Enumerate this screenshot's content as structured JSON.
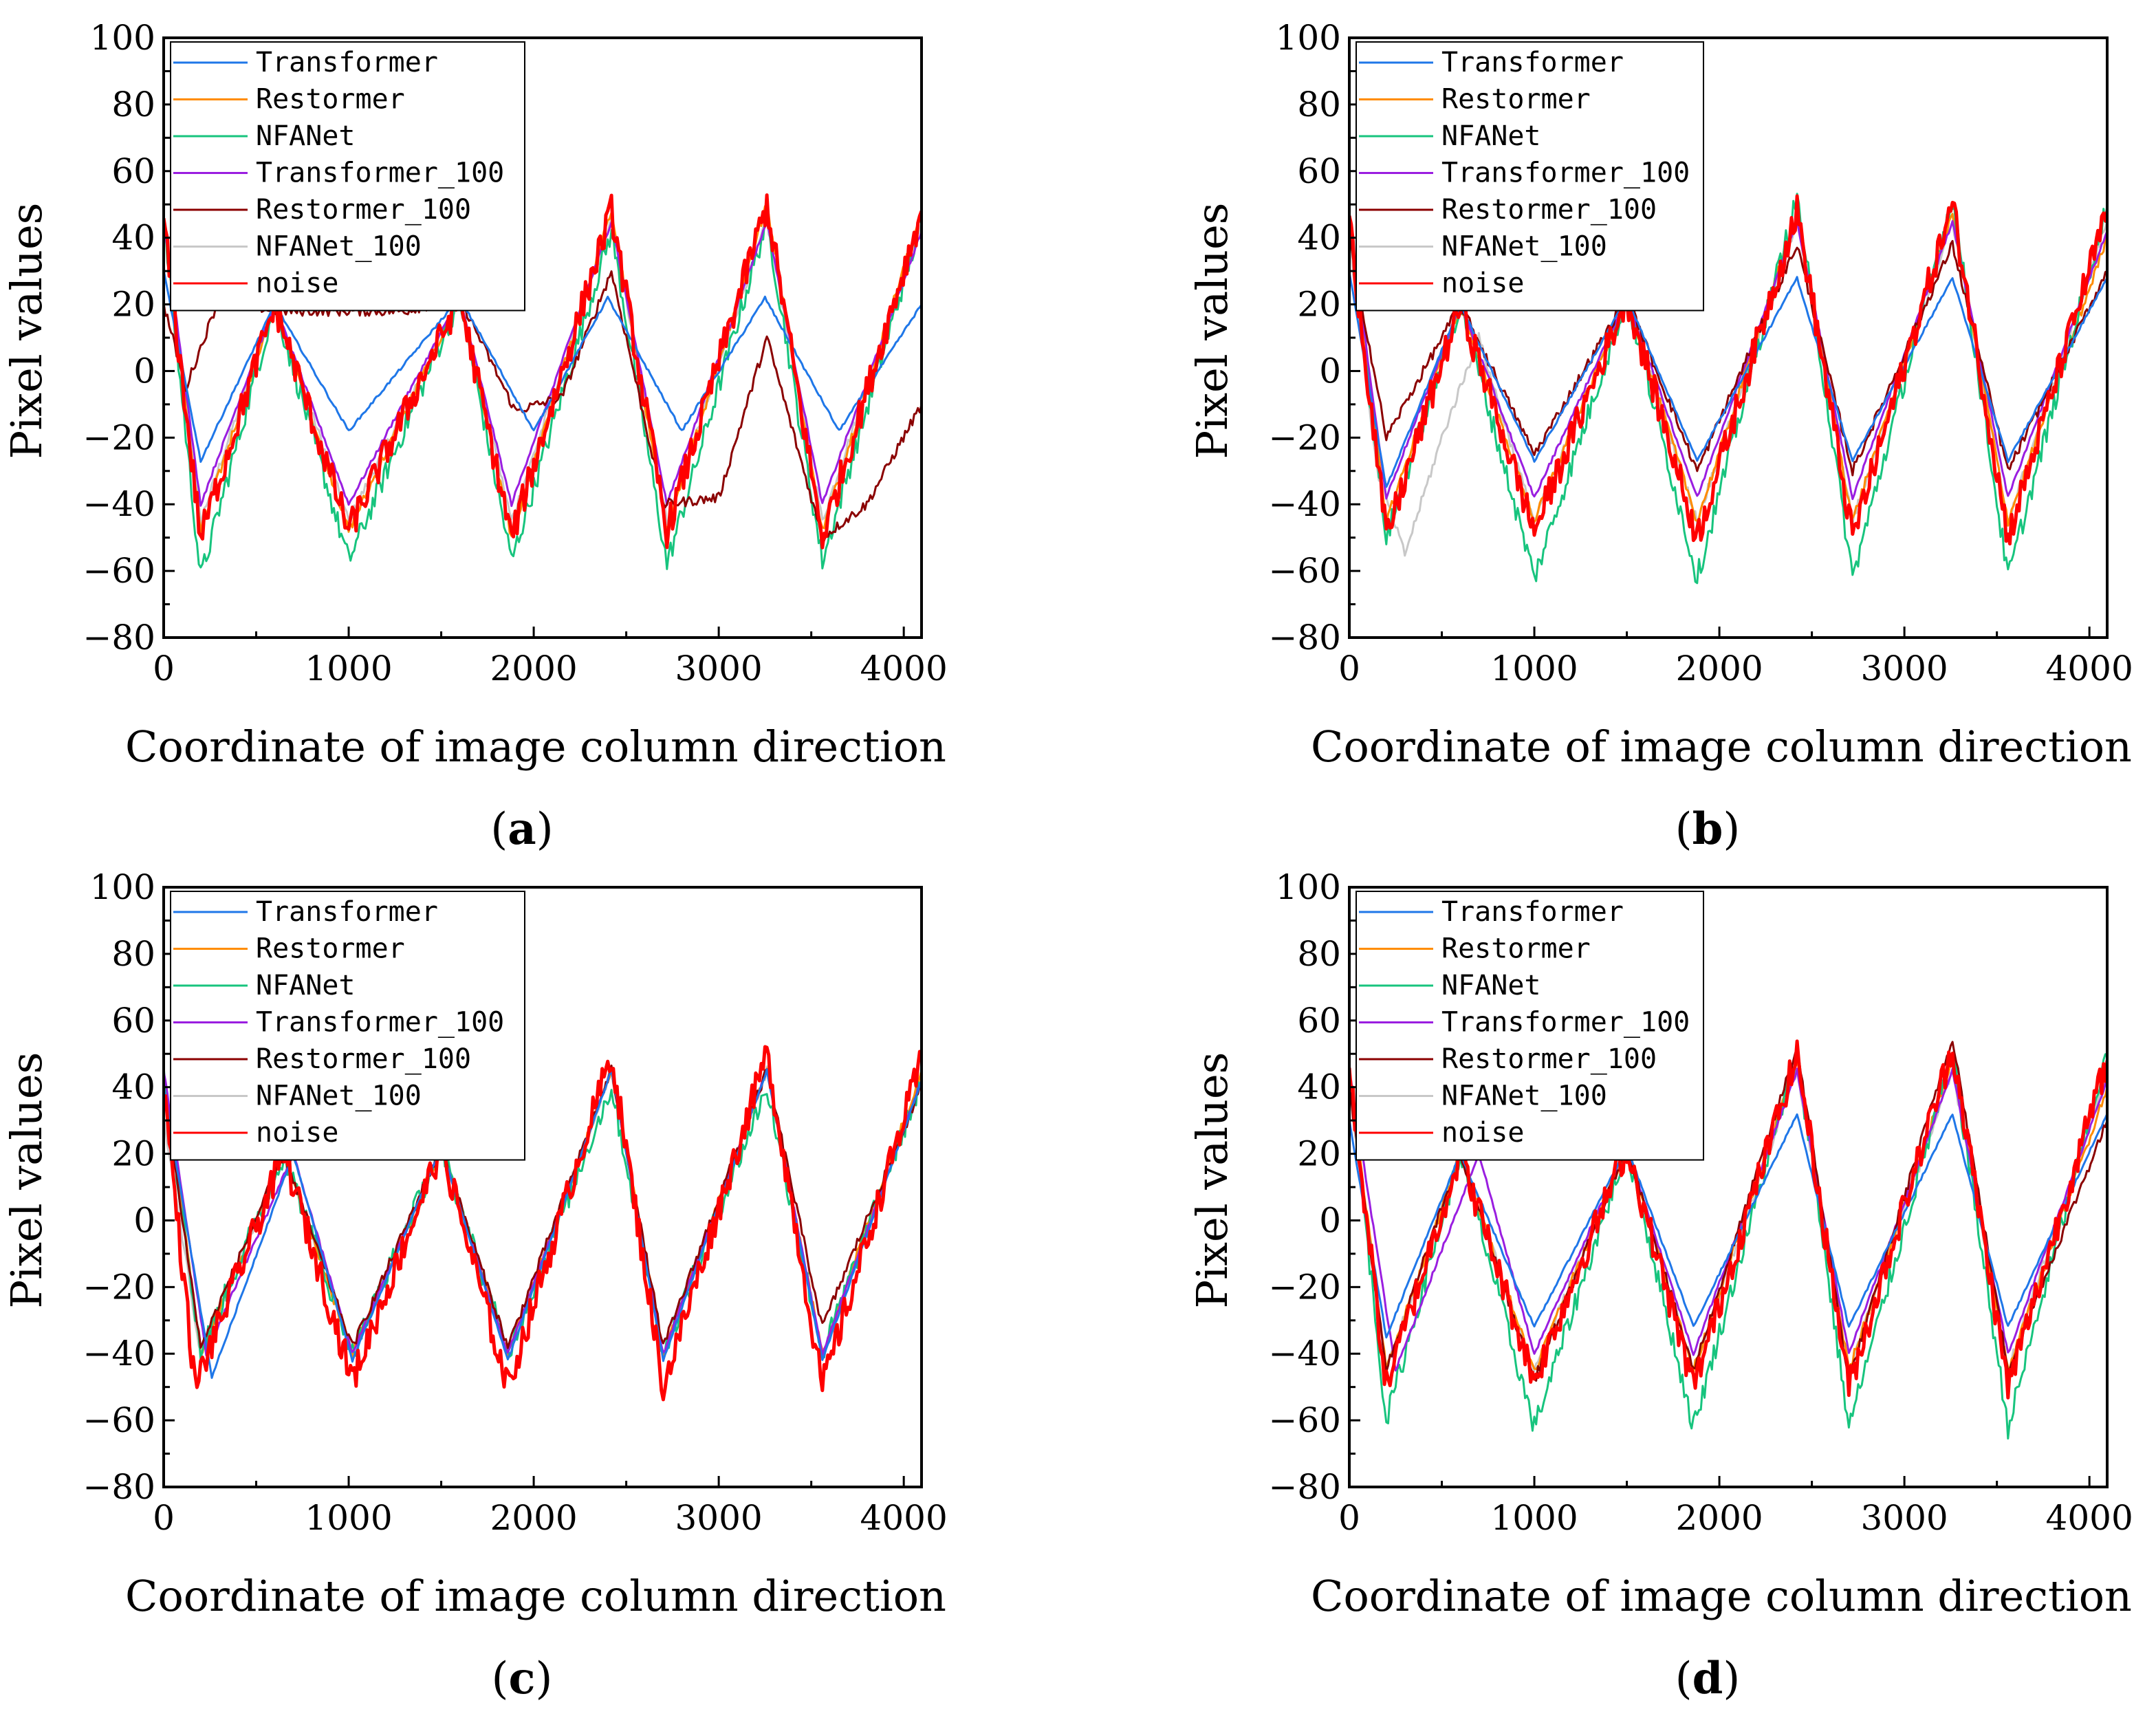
{
  "figure": {
    "background": "#ffffff"
  },
  "series_styles": [
    {
      "name": "Transformer",
      "color": "#1f77e8"
    },
    {
      "name": "Restormer",
      "color": "#ff8c00"
    },
    {
      "name": "NFANet",
      "color": "#17c47e"
    },
    {
      "name": "Transformer_100",
      "color": "#9a1ee0"
    },
    {
      "name": "Restormer_100",
      "color": "#8b0000"
    },
    {
      "name": "NFANet_100",
      "color": "#c8c8c8"
    },
    {
      "name": "noise",
      "color": "#ff0000"
    }
  ],
  "chart_data": [
    {
      "panel_label": "a",
      "type": "line",
      "xlabel": "Coordinate of image column direction",
      "ylabel": "Pixel values",
      "xlim": [
        0,
        4096
      ],
      "ylim": [
        -80,
        100
      ],
      "xticks": [
        0,
        1000,
        2000,
        3000,
        4000
      ],
      "yticks": [
        100,
        80,
        60,
        40,
        20,
        0,
        -20,
        -40,
        -60,
        -80
      ],
      "legend_position": "top-left",
      "series": [
        {
          "name": "Transformer",
          "x": [
            0,
            200,
            600,
            1000,
            1600,
            2000,
            2400,
            2800,
            3250,
            3650,
            4096
          ],
          "y": [
            30,
            -27,
            20,
            -18,
            22,
            -18,
            22,
            -18,
            22,
            -18,
            20
          ]
        },
        {
          "name": "Restormer",
          "x": [
            0,
            200,
            600,
            1000,
            1600,
            1880,
            2420,
            2720,
            3260,
            3560,
            4096
          ],
          "y": [
            45,
            -48,
            20,
            -48,
            22,
            -50,
            48,
            -48,
            50,
            -48,
            48
          ]
        },
        {
          "name": "NFANet",
          "x": [
            0,
            200,
            600,
            1000,
            1600,
            1880,
            2420,
            2720,
            3260,
            3560,
            4096
          ],
          "y": [
            45,
            -62,
            20,
            -57,
            22,
            -57,
            42,
            -58,
            45,
            -57,
            45
          ]
        },
        {
          "name": "Transformer_100",
          "x": [
            0,
            200,
            600,
            1000,
            1600,
            1880,
            2420,
            2720,
            3260,
            3560,
            4096
          ],
          "y": [
            45,
            -40,
            20,
            -40,
            22,
            -40,
            45,
            -40,
            45,
            -40,
            42
          ]
        },
        {
          "name": "Restormer_100",
          "x": [
            0,
            120,
            300,
            600,
            1000,
            1300,
            1600,
            1900,
            2150,
            2420,
            2700,
            3000,
            3260,
            3560,
            3800,
            4096
          ],
          "y": [
            20,
            -5,
            22,
            18,
            18,
            18,
            22,
            -12,
            -8,
            30,
            -40,
            -38,
            10,
            -50,
            -40,
            -10
          ]
        },
        {
          "name": "NFANet_100",
          "x": [
            0,
            200,
            600,
            1000,
            1600,
            1880,
            2420,
            2720,
            3260,
            3560,
            4096
          ],
          "y": [
            45,
            -45,
            20,
            -45,
            22,
            -45,
            45,
            -45,
            45,
            -45,
            45
          ]
        },
        {
          "name": "noise",
          "x": [
            0,
            200,
            600,
            1000,
            1600,
            1880,
            2420,
            2720,
            3260,
            3560,
            4096
          ],
          "y": [
            45,
            -50,
            20,
            -48,
            22,
            -50,
            48,
            -48,
            50,
            -50,
            48
          ]
        }
      ]
    },
    {
      "panel_label": "b",
      "type": "line",
      "xlabel": "Coordinate of image column direction",
      "ylabel": "Pixel values",
      "xlim": [
        0,
        4096
      ],
      "ylim": [
        -80,
        100
      ],
      "xticks": [
        0,
        1000,
        2000,
        3000,
        4000
      ],
      "yticks": [
        100,
        80,
        60,
        40,
        20,
        0,
        -20,
        -40,
        -60,
        -80
      ],
      "legend_position": "top-left",
      "series": [
        {
          "name": "Transformer",
          "x": [
            0,
            200,
            600,
            1000,
            1500,
            1880,
            2420,
            2720,
            3260,
            3560,
            4096
          ],
          "y": [
            30,
            -35,
            20,
            -27,
            22,
            -27,
            28,
            -27,
            28,
            -27,
            28
          ]
        },
        {
          "name": "Restormer",
          "x": [
            0,
            200,
            600,
            1000,
            1500,
            1880,
            2420,
            2720,
            3260,
            3560,
            4096
          ],
          "y": [
            45,
            -45,
            20,
            -45,
            22,
            -45,
            47,
            -45,
            47,
            -45,
            40
          ]
        },
        {
          "name": "NFANet",
          "x": [
            0,
            200,
            600,
            1000,
            1500,
            1880,
            2420,
            2720,
            3260,
            3560,
            4096
          ],
          "y": [
            45,
            -50,
            20,
            -62,
            22,
            -62,
            52,
            -62,
            52,
            -62,
            50
          ]
        },
        {
          "name": "Transformer_100",
          "x": [
            0,
            200,
            600,
            1000,
            1500,
            1880,
            2420,
            2720,
            3260,
            3560,
            4096
          ],
          "y": [
            45,
            -38,
            20,
            -38,
            22,
            -38,
            45,
            -38,
            45,
            -38,
            42
          ]
        },
        {
          "name": "Restormer_100",
          "x": [
            0,
            200,
            600,
            1000,
            1500,
            1880,
            2420,
            2720,
            3260,
            3560,
            4096
          ],
          "y": [
            40,
            -20,
            20,
            -25,
            22,
            -30,
            38,
            -30,
            38,
            -30,
            30
          ]
        },
        {
          "name": "NFANet_100",
          "x": [
            0,
            150,
            300,
            500,
            700,
            1000,
            1500,
            1880,
            2420,
            2720,
            3260,
            3560,
            4096
          ],
          "y": [
            40,
            -30,
            -55,
            -20,
            10,
            -45,
            22,
            -45,
            45,
            -45,
            45,
            -45,
            45
          ]
        },
        {
          "name": "noise",
          "x": [
            0,
            200,
            600,
            1000,
            1500,
            1880,
            2420,
            2720,
            3260,
            3560,
            4096
          ],
          "y": [
            45,
            -50,
            20,
            -48,
            22,
            -50,
            48,
            -50,
            50,
            -50,
            48
          ]
        }
      ]
    },
    {
      "panel_label": "c",
      "type": "line",
      "xlabel": "Coordinate of image column direction",
      "ylabel": "Pixel values",
      "xlim": [
        0,
        4096
      ],
      "ylim": [
        -80,
        100
      ],
      "xticks": [
        0,
        1000,
        2000,
        3000,
        4000
      ],
      "yticks": [
        100,
        80,
        60,
        40,
        20,
        0,
        -20,
        -40,
        -60,
        -80
      ],
      "legend_position": "top-left",
      "series": [
        {
          "name": "Transformer",
          "x": [
            0,
            260,
            700,
            1020,
            1500,
            1860,
            2420,
            2700,
            3260,
            3560,
            4096
          ],
          "y": [
            40,
            -47,
            20,
            -42,
            22,
            -42,
            45,
            -42,
            45,
            -42,
            42
          ]
        },
        {
          "name": "Restormer",
          "x": [
            0,
            200,
            650,
            1020,
            1500,
            1860,
            2420,
            2700,
            3260,
            3560,
            4096
          ],
          "y": [
            45,
            -40,
            20,
            -40,
            22,
            -40,
            45,
            -40,
            45,
            -40,
            45
          ]
        },
        {
          "name": "NFANet",
          "x": [
            0,
            200,
            650,
            1020,
            1500,
            1860,
            2420,
            2700,
            3260,
            3560,
            4096
          ],
          "y": [
            45,
            -40,
            20,
            -40,
            22,
            -40,
            40,
            -40,
            40,
            -40,
            42
          ]
        },
        {
          "name": "Transformer_100",
          "x": [
            0,
            230,
            700,
            1020,
            1500,
            1860,
            2420,
            2700,
            3260,
            3560,
            4096
          ],
          "y": [
            45,
            -40,
            20,
            -40,
            22,
            -40,
            45,
            -40,
            45,
            -40,
            42
          ]
        },
        {
          "name": "Restormer_100",
          "x": [
            0,
            200,
            650,
            1020,
            1500,
            1860,
            2420,
            2700,
            3260,
            3560,
            4096
          ],
          "y": [
            40,
            -38,
            20,
            -38,
            22,
            -38,
            45,
            -38,
            45,
            -32,
            40
          ]
        },
        {
          "name": "NFANet_100",
          "x": [
            0,
            200,
            650,
            1020,
            1500,
            1860,
            2420,
            2700,
            3260,
            3560,
            4096
          ],
          "y": [
            30,
            -40,
            20,
            -40,
            22,
            -40,
            45,
            -40,
            45,
            -40,
            42
          ]
        },
        {
          "name": "noise",
          "x": [
            0,
            170,
            650,
            1020,
            1500,
            1860,
            2420,
            2700,
            3260,
            3560,
            4096
          ],
          "y": [
            40,
            -50,
            20,
            -48,
            22,
            -50,
            50,
            -50,
            50,
            -50,
            48
          ]
        }
      ]
    },
    {
      "panel_label": "d",
      "type": "line",
      "xlabel": "Coordinate of image column direction",
      "ylabel": "Pixel values",
      "xlim": [
        0,
        4096
      ],
      "ylim": [
        -80,
        100
      ],
      "xticks": [
        0,
        1000,
        2000,
        3000,
        4000
      ],
      "yticks": [
        100,
        80,
        60,
        40,
        20,
        0,
        -20,
        -40,
        -60,
        -80
      ],
      "legend_position": "top-left",
      "series": [
        {
          "name": "Transformer",
          "x": [
            0,
            200,
            600,
            1000,
            1500,
            1860,
            2420,
            2700,
            3260,
            3560,
            4096
          ],
          "y": [
            30,
            -35,
            20,
            -32,
            22,
            -32,
            32,
            -32,
            32,
            -32,
            32
          ]
        },
        {
          "name": "Restormer",
          "x": [
            0,
            200,
            600,
            1000,
            1500,
            1860,
            2420,
            2700,
            3260,
            3560,
            4096
          ],
          "y": [
            45,
            -45,
            20,
            -45,
            22,
            -45,
            48,
            -45,
            48,
            -45,
            40
          ]
        },
        {
          "name": "NFANet",
          "x": [
            0,
            200,
            600,
            1000,
            1500,
            1860,
            2420,
            2700,
            3260,
            3560,
            4096
          ],
          "y": [
            45,
            -60,
            20,
            -62,
            22,
            -62,
            50,
            -62,
            50,
            -62,
            50
          ]
        },
        {
          "name": "Transformer_100",
          "x": [
            0,
            250,
            700,
            1000,
            1500,
            1860,
            2420,
            2700,
            3260,
            3560,
            4096
          ],
          "y": [
            45,
            -45,
            20,
            -40,
            22,
            -40,
            45,
            -40,
            45,
            -40,
            42
          ]
        },
        {
          "name": "Restormer_100",
          "x": [
            0,
            200,
            600,
            1000,
            1500,
            1860,
            2420,
            2700,
            3260,
            3560,
            4096
          ],
          "y": [
            40,
            -45,
            20,
            -48,
            22,
            -45,
            52,
            -48,
            55,
            -45,
            30
          ]
        },
        {
          "name": "NFANet_100",
          "x": [
            0,
            200,
            600,
            1000,
            1500,
            1860,
            2420,
            2700,
            3260,
            3560,
            4096
          ],
          "y": [
            40,
            -45,
            20,
            -45,
            22,
            -45,
            45,
            -45,
            45,
            -45,
            45
          ]
        },
        {
          "name": "noise",
          "x": [
            0,
            200,
            600,
            1000,
            1500,
            1860,
            2420,
            2700,
            3260,
            3560,
            4096
          ],
          "y": [
            45,
            -50,
            20,
            -48,
            22,
            -50,
            50,
            -50,
            52,
            -50,
            48
          ]
        }
      ]
    }
  ]
}
